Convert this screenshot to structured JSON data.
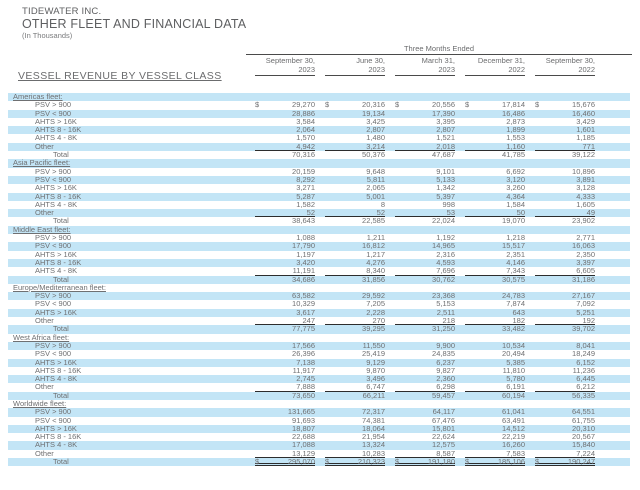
{
  "header": {
    "company": "TIDEWATER INC.",
    "doc_title": "OTHER FLEET AND FINANCIAL DATA",
    "units_note": "(In Thousands)",
    "period_label": "Three Months Ended",
    "columns": [
      {
        "line1": "September 30,",
        "line2": "2023"
      },
      {
        "line1": "June 30,",
        "line2": "2023"
      },
      {
        "line1": "March 31,",
        "line2": "2023"
      },
      {
        "line1": "December 31,",
        "line2": "2022"
      },
      {
        "line1": "September 30,",
        "line2": "2022"
      }
    ]
  },
  "section_title": "VESSEL REVENUE BY VESSEL CLASS",
  "colors": {
    "stripe_blue": "#c3e5f6",
    "table_text": "#6f7072",
    "rule_dark": "#2d2d2d"
  },
  "table": {
    "fleets": [
      {
        "name": "Americas fleet:",
        "classes": [
          {
            "label": "PSV > 900",
            "dollar": true,
            "values": [
              "29,270",
              "20,316",
              "20,556",
              "17,814",
              "15,676"
            ]
          },
          {
            "label": "PSV < 900",
            "values": [
              "28,886",
              "19,134",
              "17,390",
              "16,486",
              "16,460"
            ]
          },
          {
            "label": "AHTS > 16K",
            "values": [
              "3,584",
              "3,425",
              "3,395",
              "2,873",
              "3,429"
            ]
          },
          {
            "label": "AHTS 8 - 16K",
            "values": [
              "2,064",
              "2,807",
              "2,807",
              "1,899",
              "1,601"
            ]
          },
          {
            "label": "AHTS 4 - 8K",
            "values": [
              "1,570",
              "1,480",
              "1,521",
              "1,553",
              "1,185"
            ]
          },
          {
            "label": "Other",
            "values": [
              "4,942",
              "3,214",
              "2,018",
              "1,160",
              "771"
            ],
            "rule_below": true
          }
        ],
        "total": {
          "label": "Total",
          "values": [
            "70,316",
            "50,376",
            "47,687",
            "41,785",
            "39,122"
          ]
        }
      },
      {
        "name": "Asia Pacific fleet:",
        "classes": [
          {
            "label": "PSV > 900",
            "values": [
              "20,159",
              "9,648",
              "9,101",
              "6,692",
              "10,896"
            ]
          },
          {
            "label": "PSV < 900",
            "values": [
              "8,292",
              "5,811",
              "5,133",
              "3,120",
              "3,891"
            ]
          },
          {
            "label": "AHTS > 16K",
            "values": [
              "3,271",
              "2,065",
              "1,342",
              "3,260",
              "3,128"
            ]
          },
          {
            "label": "AHTS 8 - 16K",
            "values": [
              "5,287",
              "5,001",
              "5,397",
              "4,364",
              "4,333"
            ]
          },
          {
            "label": "AHTS 4 - 8K",
            "values": [
              "1,582",
              "8",
              "998",
              "1,584",
              "1,605"
            ]
          },
          {
            "label": "Other",
            "values": [
              "52",
              "52",
              "53",
              "50",
              "49"
            ],
            "rule_below": true
          }
        ],
        "total": {
          "label": "Total",
          "values": [
            "38,643",
            "22,585",
            "22,024",
            "19,070",
            "23,902"
          ]
        }
      },
      {
        "name": "Middle East fleet:",
        "classes": [
          {
            "label": "PSV > 900",
            "values": [
              "1,088",
              "1,211",
              "1,192",
              "1,218",
              "2,771"
            ]
          },
          {
            "label": "PSV < 900",
            "values": [
              "17,790",
              "16,812",
              "14,965",
              "15,517",
              "16,063"
            ]
          },
          {
            "label": "AHTS > 16K",
            "values": [
              "1,197",
              "1,217",
              "2,316",
              "2,351",
              "2,350"
            ]
          },
          {
            "label": "AHTS 8 - 16K",
            "values": [
              "3,420",
              "4,276",
              "4,593",
              "4,146",
              "3,397"
            ]
          },
          {
            "label": "AHTS 4 - 8K",
            "values": [
              "11,191",
              "8,340",
              "7,696",
              "7,343",
              "6,605"
            ],
            "rule_below": true
          }
        ],
        "total": {
          "label": "Total",
          "values": [
            "34,686",
            "31,856",
            "30,762",
            "30,575",
            "31,186"
          ]
        }
      },
      {
        "name": "Europe/Mediterranean fleet:",
        "classes": [
          {
            "label": "PSV > 900",
            "values": [
              "63,582",
              "29,592",
              "23,368",
              "24,783",
              "27,167"
            ]
          },
          {
            "label": "PSV < 900",
            "values": [
              "10,329",
              "7,205",
              "5,153",
              "7,874",
              "7,092"
            ]
          },
          {
            "label": "AHTS > 16K",
            "values": [
              "3,617",
              "2,228",
              "2,511",
              "643",
              "5,251"
            ]
          },
          {
            "label": "Other",
            "values": [
              "247",
              "270",
              "218",
              "182",
              "192"
            ],
            "rule_below": true
          }
        ],
        "total": {
          "label": "Total",
          "values": [
            "77,775",
            "39,295",
            "31,250",
            "33,482",
            "39,702"
          ]
        }
      },
      {
        "name": "West Africa fleet:",
        "classes": [
          {
            "label": "PSV > 900",
            "values": [
              "17,566",
              "11,550",
              "9,900",
              "10,534",
              "8,041"
            ]
          },
          {
            "label": "PSV < 900",
            "values": [
              "26,396",
              "25,419",
              "24,835",
              "20,494",
              "18,249"
            ]
          },
          {
            "label": "AHTS > 16K",
            "values": [
              "7,138",
              "9,129",
              "6,237",
              "5,385",
              "6,152"
            ]
          },
          {
            "label": "AHTS 8 - 16K",
            "values": [
              "11,917",
              "9,870",
              "9,827",
              "11,810",
              "11,236"
            ]
          },
          {
            "label": "AHTS 4 - 8K",
            "values": [
              "2,745",
              "3,496",
              "2,360",
              "5,780",
              "6,445"
            ]
          },
          {
            "label": "Other",
            "values": [
              "7,888",
              "6,747",
              "6,298",
              "6,191",
              "6,212"
            ],
            "rule_below": true
          }
        ],
        "total": {
          "label": "Total",
          "values": [
            "73,650",
            "66,211",
            "59,457",
            "60,194",
            "56,335"
          ]
        }
      },
      {
        "name": "Worldwide fleet:",
        "classes": [
          {
            "label": "PSV > 900",
            "values": [
              "131,665",
              "72,317",
              "64,117",
              "61,041",
              "64,551"
            ]
          },
          {
            "label": "PSV < 900",
            "values": [
              "91,693",
              "74,381",
              "67,476",
              "63,491",
              "61,755"
            ]
          },
          {
            "label": "AHTS > 16K",
            "values": [
              "18,807",
              "18,064",
              "15,801",
              "14,512",
              "20,310"
            ]
          },
          {
            "label": "AHTS 8 - 16K",
            "values": [
              "22,688",
              "21,954",
              "22,624",
              "22,219",
              "20,567"
            ]
          },
          {
            "label": "AHTS 4 - 8K",
            "values": [
              "17,088",
              "13,324",
              "12,575",
              "16,260",
              "15,840"
            ]
          },
          {
            "label": "Other",
            "values": [
              "13,129",
              "10,283",
              "8,587",
              "7,583",
              "7,224"
            ],
            "rule_below": true
          }
        ],
        "total": {
          "label": "Total",
          "dollar": true,
          "double_rule": true,
          "values": [
            "295,070",
            "210,323",
            "191,180",
            "185,106",
            "190,247"
          ]
        }
      }
    ]
  }
}
